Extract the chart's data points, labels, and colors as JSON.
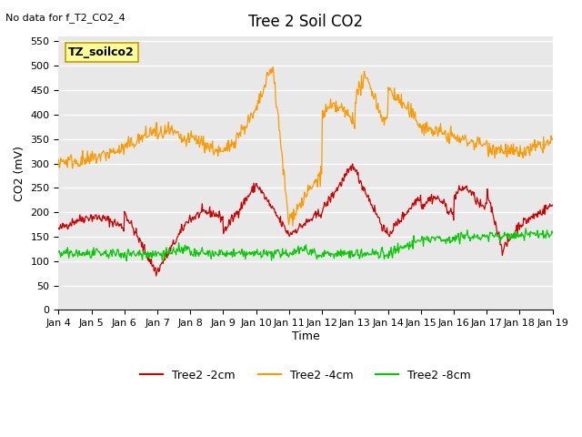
{
  "title": "Tree 2 Soil CO2",
  "no_data_text": "No data for f_T2_CO2_4",
  "ylabel": "CO2 (mV)",
  "xlabel": "Time",
  "annotation_box": "TZ_soilco2",
  "ylim": [
    0,
    560
  ],
  "yticks": [
    0,
    50,
    100,
    150,
    200,
    250,
    300,
    350,
    400,
    450,
    500,
    550
  ],
  "x_labels": [
    "Jan 4",
    "Jan 5",
    "Jan 6",
    "Jan 7",
    "Jan 8",
    "Jan 9",
    "Jan 10",
    "Jan 11",
    "Jan 12",
    "Jan 13",
    "Jan 14",
    "Jan 15",
    "Jan 16",
    "Jan 17",
    "Jan 18",
    "Jan 19"
  ],
  "legend": [
    {
      "label": "Tree2 -2cm",
      "color": "#cc0000"
    },
    {
      "label": "Tree2 -4cm",
      "color": "#ff9900"
    },
    {
      "label": "Tree2 -8cm",
      "color": "#00cc00"
    }
  ],
  "bg_color": "#e8e8e8",
  "grid_color": "#ffffff",
  "annotation_box_color": "#ffff99",
  "annotation_box_edge": "#cc9900"
}
